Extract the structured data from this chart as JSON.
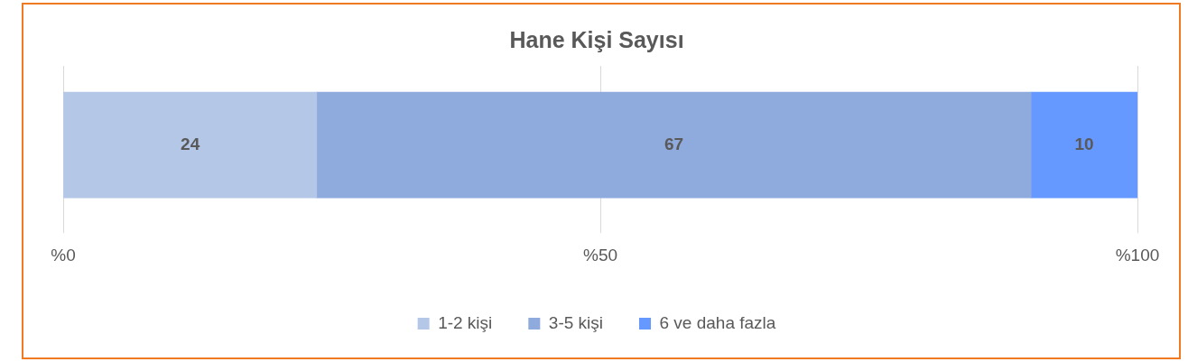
{
  "chart_data": {
    "type": "bar",
    "orientation": "horizontal",
    "stacked": true,
    "title": "Hane Kişi Sayısı",
    "categories": [
      null
    ],
    "series": [
      {
        "name": "1-2 kişi",
        "color": "#b4c7e7",
        "values": [
          23.6
        ],
        "value_labels": [
          "24"
        ]
      },
      {
        "name": "3-5 kişi",
        "color": "#8faadc",
        "values": [
          66.5
        ],
        "value_labels": [
          "67"
        ]
      },
      {
        "name": "6 ve daha fazla",
        "color": "#6699ff",
        "values": [
          9.9
        ],
        "value_labels": [
          "10"
        ]
      }
    ],
    "xlim": [
      0,
      100
    ],
    "xticks": [
      {
        "value": 0,
        "label": "%0"
      },
      {
        "value": 50,
        "label": "%50"
      },
      {
        "value": 100,
        "label": "%100"
      }
    ],
    "grid": "x",
    "legend": "bottom",
    "tick_labels": "x"
  }
}
